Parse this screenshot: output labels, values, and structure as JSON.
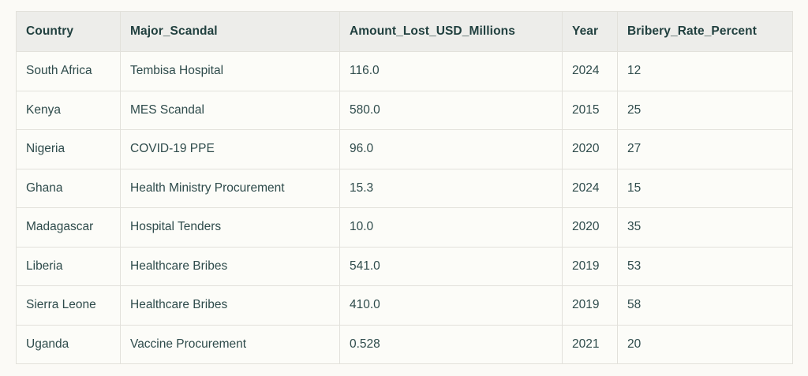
{
  "colors": {
    "page_background": "#fbfaf6",
    "header_background": "#ededea",
    "row_background": "#fcfcf8",
    "border": "#e2e1db",
    "header_text": "#21403f",
    "cell_text": "#2e4b4b"
  },
  "chart_data": {
    "type": "table",
    "title": "",
    "columns": [
      "Country",
      "Major_Scandal",
      "Amount_Lost_USD_Millions",
      "Year",
      "Bribery_Rate_Percent"
    ],
    "rows": [
      [
        "South Africa",
        "Tembisa Hospital",
        "116.0",
        "2024",
        "12"
      ],
      [
        "Kenya",
        "MES Scandal",
        "580.0",
        "2015",
        "25"
      ],
      [
        "Nigeria",
        "COVID-19 PPE",
        "96.0",
        "2020",
        "27"
      ],
      [
        "Ghana",
        "Health Ministry Procurement",
        "15.3",
        "2024",
        "15"
      ],
      [
        "Madagascar",
        "Hospital Tenders",
        "10.0",
        "2020",
        "35"
      ],
      [
        "Liberia",
        "Healthcare Bribes",
        "541.0",
        "2019",
        "53"
      ],
      [
        "Sierra Leone",
        "Healthcare Bribes",
        "410.0",
        "2019",
        "58"
      ],
      [
        "Uganda",
        "Vaccine Procurement",
        "0.528",
        "2021",
        "20"
      ]
    ]
  }
}
